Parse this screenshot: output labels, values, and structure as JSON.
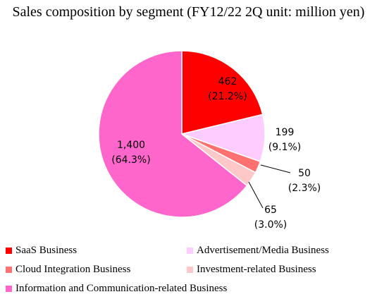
{
  "chart_data": {
    "type": "pie",
    "title": "Sales composition by segment (FY12/22 2Q unit: million yen)",
    "slices": [
      {
        "name": "SaaS Business",
        "value": 462,
        "value_label": "462",
        "pct_label": "(21.2%)",
        "color": "#ff0000"
      },
      {
        "name": "Advertisement/Media Business",
        "value": 199,
        "value_label": "199",
        "pct_label": "(9.1%)",
        "color": "#ffccff"
      },
      {
        "name": "Cloud Integration Business",
        "value": 50,
        "value_label": "50",
        "pct_label": "(2.3%)",
        "color": "#ff7070"
      },
      {
        "name": "Investment-related Business",
        "value": 65,
        "value_label": "65",
        "pct_label": "(3.0%)",
        "color": "#ffc8c8"
      },
      {
        "name": "Information and Communication-related Business",
        "value": 1400,
        "value_label": "1,400",
        "pct_label": "(64.3%)",
        "color": "#ff66cc"
      }
    ],
    "legend_position": "bottom"
  }
}
